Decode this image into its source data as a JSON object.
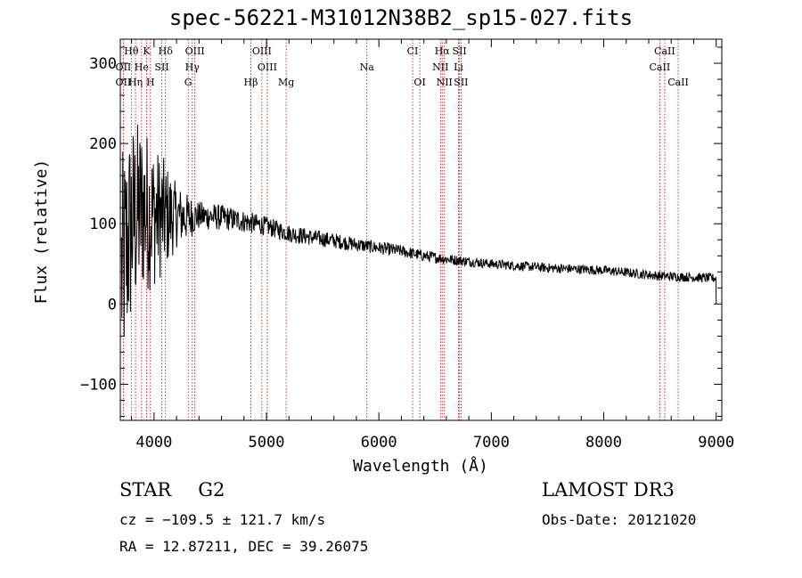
{
  "title": "spec-56221-M31012N38B2_sp15-027.fits",
  "info": {
    "object_type": "STAR",
    "subclass": "G2",
    "survey": "LAMOST DR3",
    "cz_text": "cz = −109.5 ± 121.7 km/s",
    "obs_date_text": "Obs-Date: 20121020",
    "coords_text": "RA =  12.87211, DEC =  39.26075"
  },
  "colors": {
    "line_marker": "#cc0000",
    "spectrum": "#000000",
    "axis": "#000000"
  },
  "chart_data": {
    "type": "line",
    "title": "spec-56221-M31012N38B2_sp15-027.fits",
    "xlabel": "Wavelength (Å)",
    "ylabel": "Flux (relative)",
    "xlim": [
      3700,
      9050
    ],
    "ylim": [
      -145,
      330
    ],
    "xticks": [
      4000,
      5000,
      6000,
      7000,
      8000,
      9000
    ],
    "yticks": [
      -100,
      0,
      100,
      200,
      300
    ],
    "ytick_labels": [
      "−100",
      "0",
      "100",
      "200",
      "300"
    ],
    "spectrum_trend": {
      "x": [
        3700,
        3800,
        3900,
        4000,
        4100,
        4200,
        4300,
        4400,
        4600,
        4800,
        5000,
        5200,
        5400,
        5600,
        5800,
        6000,
        6200,
        6400,
        6600,
        6800,
        7000,
        7500,
        8000,
        8500,
        9000
      ],
      "y": [
        30,
        100,
        120,
        110,
        110,
        110,
        108,
        110,
        108,
        103,
        97,
        88,
        83,
        79,
        74,
        70,
        66,
        60,
        56,
        53,
        50,
        45,
        42,
        35,
        32
      ]
    },
    "noise_amplitude_by_wavelength": {
      "x": [
        3700,
        3900,
        4100,
        4200,
        4400,
        5000,
        6000,
        7000,
        9000
      ],
      "amp": [
        150,
        110,
        70,
        40,
        18,
        12,
        8,
        6,
        6
      ]
    },
    "line_markers": [
      {
        "label": "Hθ",
        "x": 3798,
        "row": 0
      },
      {
        "label": "K",
        "x": 3934,
        "row": 0
      },
      {
        "label": "Hδ",
        "x": 4102,
        "row": 0
      },
      {
        "label": "OIII",
        "x": 4363,
        "row": 0
      },
      {
        "label": "OIII",
        "x": 4959,
        "row": 0
      },
      {
        "label": "CI",
        "x": 6300,
        "row": 0
      },
      {
        "label": "Hα",
        "x": 6563,
        "row": 0
      },
      {
        "label": "SII",
        "x": 6717,
        "row": 0
      },
      {
        "label": "CaII",
        "x": 8542,
        "row": 0
      },
      {
        "label": "OII",
        "x": 3727,
        "row": 1
      },
      {
        "label": "He",
        "x": 3889,
        "row": 1
      },
      {
        "label": "SII",
        "x": 4069,
        "row": 1
      },
      {
        "label": "Hγ",
        "x": 4340,
        "row": 1
      },
      {
        "label": "OIII",
        "x": 5007,
        "row": 1
      },
      {
        "label": "Na",
        "x": 5893,
        "row": 1
      },
      {
        "label": "NII",
        "x": 6548,
        "row": 1
      },
      {
        "label": "Li",
        "x": 6708,
        "row": 1
      },
      {
        "label": "CaII",
        "x": 8498,
        "row": 1
      },
      {
        "label": "OII",
        "x": 3727,
        "row": 2
      },
      {
        "label": "Hη",
        "x": 3835,
        "row": 2
      },
      {
        "label": "H",
        "x": 3968,
        "row": 2
      },
      {
        "label": "G",
        "x": 4304,
        "row": 2
      },
      {
        "label": "Hβ",
        "x": 4861,
        "row": 2
      },
      {
        "label": "Mg",
        "x": 5175,
        "row": 2
      },
      {
        "label": "OI",
        "x": 6364,
        "row": 2
      },
      {
        "label": "NII",
        "x": 6583,
        "row": 2
      },
      {
        "label": "SII",
        "x": 6731,
        "row": 2
      },
      {
        "label": "CaII",
        "x": 8662,
        "row": 2
      }
    ]
  }
}
